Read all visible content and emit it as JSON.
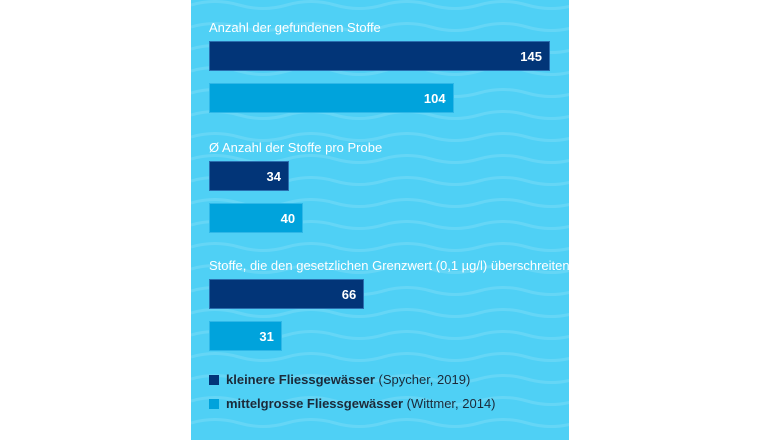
{
  "chart_data": {
    "type": "bar",
    "orientation": "horizontal",
    "categories": [
      "Anzahl der gefundenen Stoffe",
      "Ø Anzahl der Stoffe pro Probe",
      "Stoffe, die den gesetzlichen Grenzwert (0,1 µg/l) überschreiten"
    ],
    "series": [
      {
        "name": "kleinere Fliessgewässer",
        "source": "(Spycher, 2019)",
        "color": "#023578",
        "values": [
          145,
          34,
          66
        ]
      },
      {
        "name": "mittelgrosse Fliessgewässer",
        "source": "(Wittmer, 2014)",
        "color": "#00a3dc",
        "values": [
          104,
          40,
          31
        ]
      }
    ],
    "xlim": [
      0,
      145
    ],
    "grid": false,
    "legend": "bottom-left",
    "background_color": "#4fd0f5"
  }
}
